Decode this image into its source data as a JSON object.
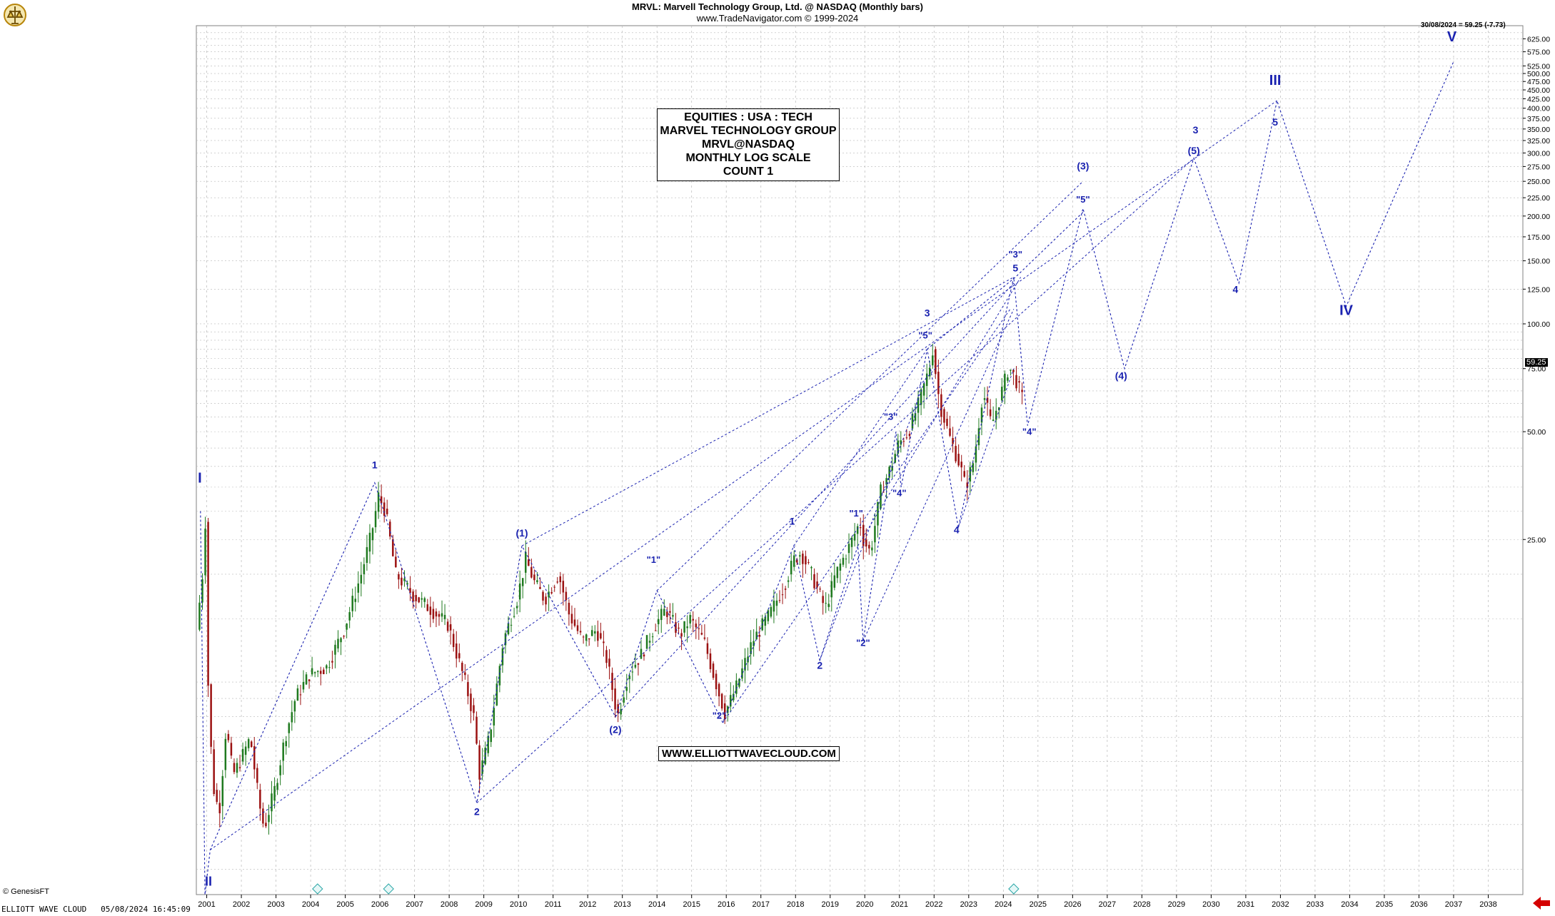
{
  "header": {
    "title": "MRVL:  Marvell Technology Group, Ltd. @ NASDAQ  (Monthly bars)",
    "subtitle": "www.TradeNavigator.com © 1999-2024"
  },
  "info_box": [
    "EQUITIES : USA : TECH",
    "MARVEL TECHNOLOGY GROUP",
    "MRVL@NASDAQ",
    "MONTHLY LOG SCALE",
    "COUNT 1"
  ],
  "url_box": "WWW.ELLIOTTWAVECLOUD.COM",
  "last_price_label": "30/08/2024 = 59.25 (-7.73)",
  "price_tag": "59.25",
  "footer": {
    "left": "ELLIOTT WAVE CLOUD   05/08/2024 16:45:09",
    "credit": "© GenesisFT"
  },
  "colors": {
    "wave": "#1a22b0",
    "candle_up": "#1f7a1f",
    "candle_down": "#9b1111",
    "grid": "#b8b8b8"
  },
  "icons": {
    "logo": "trade-navigator-logo",
    "arrow": "red-left-arrow"
  },
  "chart_data": {
    "type": "candlestick",
    "yscale": "log",
    "x_range": [
      2000.7,
      2039.0
    ],
    "y_range": [
      2.55,
      680
    ],
    "y_ticks": [
      25,
      50,
      75,
      100,
      125,
      150,
      175,
      200,
      225,
      250,
      275,
      300,
      325,
      350,
      375,
      400,
      425,
      450,
      475,
      500,
      525,
      575,
      625
    ],
    "y_tick_labels": [
      "25.00",
      "50.00",
      "75.00",
      "100.00",
      "125.00",
      "150.00",
      "175.00",
      "200.00",
      "225.00",
      "250.00",
      "275.00",
      "300.00",
      "325.00",
      "350.00",
      "375.00",
      "400.00",
      "425.00",
      "450.00",
      "475.00",
      "500.00",
      "525.00",
      "575.00",
      "625.00"
    ],
    "x_ticks": [
      2001,
      2002,
      2003,
      2004,
      2005,
      2006,
      2007,
      2008,
      2009,
      2010,
      2011,
      2012,
      2013,
      2014,
      2015,
      2016,
      2017,
      2018,
      2019,
      2020,
      2021,
      2022,
      2023,
      2024,
      2025,
      2026,
      2027,
      2028,
      2029,
      2030,
      2031,
      2032,
      2033,
      2034,
      2035,
      2036,
      2037,
      2038
    ],
    "x_tick_labels": [
      "2001",
      "2002",
      "2003",
      "2004",
      "2005",
      "2006",
      "2007",
      "2008",
      "2009",
      "2010",
      "2011",
      "2012",
      "2013",
      "2014",
      "2015",
      "2016",
      "2017",
      "2018",
      "2019",
      "2020",
      "2021",
      "2022",
      "2023",
      "2024",
      "2025",
      "2026",
      "2027",
      "2028",
      "2029",
      "2030",
      "2031",
      "2032",
      "2033",
      "2034",
      "2035",
      "2036",
      "2037",
      "2038"
    ],
    "price_anchors": [
      [
        2000.75,
        14.0
      ],
      [
        2000.92,
        20.0
      ],
      [
        2001.0,
        28.0
      ],
      [
        2001.1,
        8.0
      ],
      [
        2001.25,
        5.0
      ],
      [
        2001.4,
        4.3
      ],
      [
        2001.6,
        7.5
      ],
      [
        2001.8,
        5.5
      ],
      [
        2002.0,
        6.0
      ],
      [
        2002.3,
        7.0
      ],
      [
        2002.55,
        4.6
      ],
      [
        2002.7,
        3.9
      ],
      [
        2003.0,
        5.0
      ],
      [
        2003.3,
        7.0
      ],
      [
        2003.6,
        9.0
      ],
      [
        2004.0,
        10.5
      ],
      [
        2004.5,
        11.0
      ],
      [
        2005.0,
        14.0
      ],
      [
        2005.5,
        20.0
      ],
      [
        2005.8,
        26.0
      ],
      [
        2006.0,
        33.0
      ],
      [
        2006.2,
        30.0
      ],
      [
        2006.5,
        20.0
      ],
      [
        2007.0,
        17.5
      ],
      [
        2007.5,
        16.0
      ],
      [
        2008.0,
        14.5
      ],
      [
        2008.5,
        10.0
      ],
      [
        2008.75,
        8.0
      ],
      [
        2008.92,
        5.5
      ],
      [
        2009.2,
        7.0
      ],
      [
        2009.6,
        13.0
      ],
      [
        2010.0,
        17.0
      ],
      [
        2010.25,
        22.0
      ],
      [
        2010.5,
        19.0
      ],
      [
        2010.8,
        17.0
      ],
      [
        2011.2,
        20.0
      ],
      [
        2011.5,
        15.5
      ],
      [
        2011.9,
        13.0
      ],
      [
        2012.3,
        14.0
      ],
      [
        2012.6,
        11.5
      ],
      [
        2012.9,
        8.0
      ],
      [
        2013.2,
        10.5
      ],
      [
        2013.6,
        12.0
      ],
      [
        2014.0,
        14.5
      ],
      [
        2014.3,
        16.0
      ],
      [
        2014.7,
        13.5
      ],
      [
        2015.0,
        15.0
      ],
      [
        2015.4,
        13.0
      ],
      [
        2015.8,
        9.5
      ],
      [
        2016.0,
        8.2
      ],
      [
        2016.3,
        9.5
      ],
      [
        2016.8,
        13.0
      ],
      [
        2017.3,
        15.5
      ],
      [
        2017.7,
        18.5
      ],
      [
        2018.0,
        22.0
      ],
      [
        2018.2,
        23.0
      ],
      [
        2018.5,
        20.0
      ],
      [
        2018.9,
        16.0
      ],
      [
        2019.2,
        20.0
      ],
      [
        2019.6,
        24.0
      ],
      [
        2019.9,
        28.0
      ],
      [
        2020.0,
        25.0
      ],
      [
        2020.2,
        23.0
      ],
      [
        2020.5,
        34.0
      ],
      [
        2020.8,
        40.0
      ],
      [
        2021.0,
        46.0
      ],
      [
        2021.3,
        50.0
      ],
      [
        2021.6,
        60.0
      ],
      [
        2021.9,
        75.0
      ],
      [
        2022.0,
        85.0
      ],
      [
        2022.2,
        60.0
      ],
      [
        2022.5,
        48.0
      ],
      [
        2022.8,
        40.0
      ],
      [
        2022.95,
        35.0
      ],
      [
        2023.2,
        42.0
      ],
      [
        2023.45,
        65.0
      ],
      [
        2023.7,
        52.0
      ],
      [
        2024.0,
        65.0
      ],
      [
        2024.2,
        76.0
      ],
      [
        2024.4,
        70.0
      ],
      [
        2024.58,
        62.0
      ]
    ],
    "wave_path": [
      [
        2000.82,
        30.0
      ],
      [
        2000.95,
        2.55
      ],
      [
        2001.1,
        3.4
      ],
      [
        2005.85,
        36.0
      ],
      [
        2008.8,
        4.6
      ],
      [
        2010.1,
        24.0
      ],
      [
        2012.8,
        8.0
      ],
      [
        2014.0,
        18.0
      ],
      [
        2015.9,
        7.7
      ],
      [
        2017.95,
        24.0
      ],
      [
        2018.7,
        11.5
      ],
      [
        2019.8,
        24.0
      ],
      [
        2019.95,
        13.0
      ],
      [
        2020.9,
        50.0
      ],
      [
        2021.05,
        35.0
      ],
      [
        2021.8,
        85.0
      ],
      [
        2022.7,
        27.0
      ],
      [
        2024.3,
        135.0
      ],
      [
        2024.7,
        52.0
      ],
      [
        2026.3,
        210.0
      ],
      [
        2027.5,
        75.0
      ],
      [
        2029.5,
        290.0
      ],
      [
        2030.8,
        130.0
      ],
      [
        2031.9,
        420.0
      ],
      [
        2033.9,
        112.0
      ],
      [
        2037.0,
        540.0
      ]
    ],
    "wave_path_2": [
      [
        2021.8,
        85.0
      ],
      [
        2024.35,
        135.0
      ],
      [
        2026.3,
        205.0
      ]
    ],
    "channel_lines": [
      [
        [
          2001.1,
          3.4
        ],
        [
          2031.9,
          420.0
        ]
      ],
      [
        [
          2008.8,
          4.6
        ],
        [
          2029.5,
          290.0
        ]
      ],
      [
        [
          2010.1,
          24.0
        ],
        [
          2024.3,
          135.0
        ]
      ],
      [
        [
          2012.8,
          8.0
        ],
        [
          2024.3,
          130.0
        ]
      ],
      [
        [
          2014.0,
          18.0
        ],
        [
          2026.3,
          250.0
        ]
      ],
      [
        [
          2015.9,
          7.7
        ],
        [
          2024.2,
          110.0
        ]
      ],
      [
        [
          2017.95,
          24.0
        ],
        [
          2021.8,
          85.0
        ]
      ],
      [
        [
          2018.7,
          11.5
        ],
        [
          2021.8,
          72.0
        ]
      ],
      [
        [
          2019.8,
          24.0
        ],
        [
          2024.5,
          135.0
        ]
      ],
      [
        [
          2019.95,
          13.0
        ],
        [
          2024.3,
          110.0
        ]
      ],
      [
        [
          2022.7,
          27.0
        ],
        [
          2024.3,
          75.0
        ]
      ]
    ],
    "wave_labels": [
      {
        "text": "I",
        "x": 2000.8,
        "y": 36.0,
        "size": 20
      },
      {
        "text": "II",
        "x": 2001.05,
        "y": 2.7,
        "size": 18
      },
      {
        "text": "1",
        "x": 2005.85,
        "y": 39.5,
        "size": 14
      },
      {
        "text": "2",
        "x": 2008.8,
        "y": 4.25,
        "size": 14
      },
      {
        "text": "(1)",
        "x": 2010.1,
        "y": 25.5,
        "size": 14
      },
      {
        "text": "(2)",
        "x": 2012.8,
        "y": 7.2,
        "size": 14
      },
      {
        "text": "\"1\"",
        "x": 2013.9,
        "y": 21.5,
        "size": 13
      },
      {
        "text": "\"2\"",
        "x": 2015.8,
        "y": 7.9,
        "size": 13
      },
      {
        "text": "1",
        "x": 2017.9,
        "y": 27.5,
        "size": 14
      },
      {
        "text": "2",
        "x": 2018.7,
        "y": 10.9,
        "size": 14
      },
      {
        "text": "\"1\"",
        "x": 2019.75,
        "y": 29.0,
        "size": 13
      },
      {
        "text": "\"2\"",
        "x": 2019.95,
        "y": 12.6,
        "size": 13
      },
      {
        "text": "\"3\"",
        "x": 2020.75,
        "y": 54.0,
        "size": 13
      },
      {
        "text": "\"4\"",
        "x": 2021.0,
        "y": 33.0,
        "size": 13
      },
      {
        "text": "3",
        "x": 2021.8,
        "y": 105.0,
        "size": 14
      },
      {
        "text": "\"5\"",
        "x": 2021.75,
        "y": 91.0,
        "size": 13
      },
      {
        "text": "4",
        "x": 2022.65,
        "y": 26.0,
        "size": 14
      },
      {
        "text": "\"3\"",
        "x": 2024.35,
        "y": 153.0,
        "size": 13
      },
      {
        "text": "5",
        "x": 2024.35,
        "y": 140.0,
        "size": 14
      },
      {
        "text": "\"4\"",
        "x": 2024.75,
        "y": 49.0,
        "size": 13
      },
      {
        "text": "(3)",
        "x": 2026.3,
        "y": 270.0,
        "size": 14
      },
      {
        "text": "\"5\"",
        "x": 2026.3,
        "y": 218.0,
        "size": 13
      },
      {
        "text": "(4)",
        "x": 2027.4,
        "y": 70.0,
        "size": 14
      },
      {
        "text": "3",
        "x": 2029.55,
        "y": 340.0,
        "size": 14
      },
      {
        "text": "(5)",
        "x": 2029.5,
        "y": 298.0,
        "size": 14
      },
      {
        "text": "4",
        "x": 2030.7,
        "y": 122.0,
        "size": 14
      },
      {
        "text": "III",
        "x": 2031.85,
        "y": 465.0,
        "size": 20
      },
      {
        "text": "5",
        "x": 2031.85,
        "y": 358.0,
        "size": 14
      },
      {
        "text": "IV",
        "x": 2033.9,
        "y": 106.0,
        "size": 20
      },
      {
        "text": "V",
        "x": 2036.95,
        "y": 615.0,
        "size": 20
      }
    ],
    "event_markers": [
      2004.2,
      2006.25,
      2024.3
    ]
  }
}
